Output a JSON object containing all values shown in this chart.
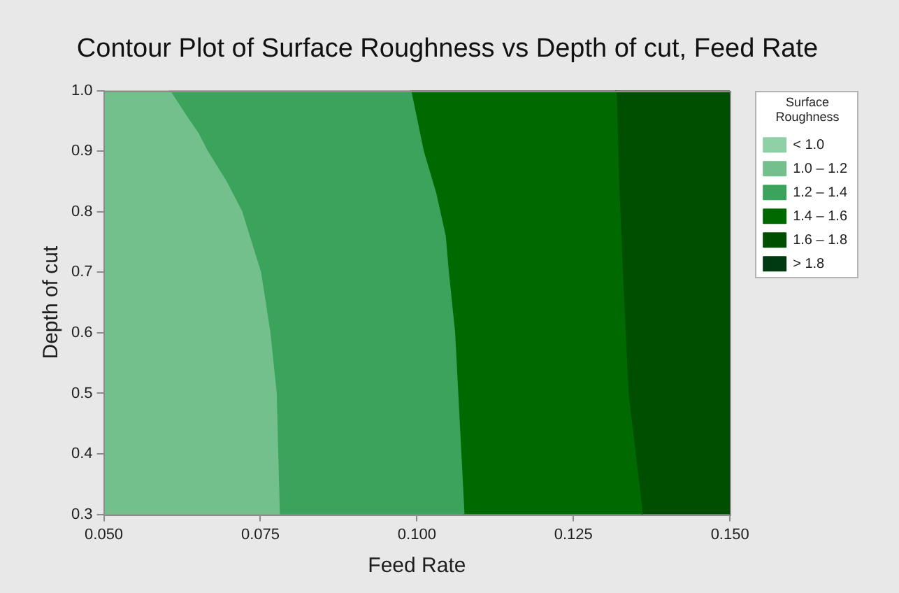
{
  "chart_data": {
    "type": "area",
    "title": "Contour Plot of Surface Roughness vs Depth of cut, Feed Rate",
    "xlabel": "Feed Rate",
    "ylabel": "Depth of cut",
    "legend_title": "Surface Roughness",
    "legend": "top right",
    "xlim": [
      0.05,
      0.15
    ],
    "xticks": [
      {
        "value": 0.05,
        "label": "0.050"
      },
      0.075,
      {
        "value": 0.1,
        "label": "0.100"
      },
      0.125,
      {
        "value": 0.15,
        "label": "0.150"
      }
    ],
    "ylim": [
      0.3,
      1
    ],
    "yticks": [
      0.3,
      0.4,
      0.5,
      0.6,
      0.7,
      0.8,
      0.9,
      {
        "value": 1,
        "label": "1.0"
      }
    ],
    "series": [
      {
        "name": "< 1.0",
        "color": "#8fd0a6"
      },
      {
        "name": "1.0 – 1.2",
        "color": "#74c08c",
        "x": [
          0.05,
          0.078,
          0.0775,
          0.0765,
          0.075,
          0.072,
          0.0695,
          0.0665,
          0.065,
          0.063,
          0.0605,
          0.05
        ],
        "values": [
          0.3,
          0.3,
          0.5,
          0.6,
          0.7,
          0.8,
          0.85,
          0.9,
          0.93,
          0.96,
          1,
          1
        ]
      },
      {
        "name": "1.2 – 1.4",
        "color": "#3ba35b",
        "x": [
          0.078,
          0.0775,
          0.0765,
          0.075,
          0.072,
          0.0695,
          0.0665,
          0.065,
          0.063,
          0.0605,
          0.099,
          0.101,
          0.103,
          0.1045,
          0.105,
          0.106,
          0.1065,
          0.1075
        ],
        "values": [
          0.3,
          0.5,
          0.6,
          0.7,
          0.8,
          0.85,
          0.9,
          0.93,
          0.96,
          1,
          1,
          0.9,
          0.83,
          0.76,
          0.7,
          0.6,
          0.5,
          0.3
        ]
      },
      {
        "name": "1.4 – 1.6",
        "color": "#006a00",
        "x": [
          0.1075,
          0.1065,
          0.106,
          0.105,
          0.1045,
          0.103,
          0.101,
          0.099,
          0.1318,
          0.1322,
          0.1328,
          0.1337,
          0.136
        ],
        "values": [
          0.3,
          0.5,
          0.6,
          0.7,
          0.76,
          0.83,
          0.9,
          1,
          1,
          0.85,
          0.7,
          0.5,
          0.3
        ]
      },
      {
        "name": "1.6 – 1.8",
        "color": "#004f00",
        "x": [
          0.136,
          0.1337,
          0.1328,
          0.1322,
          0.1318,
          0.15,
          0.15
        ],
        "values": [
          0.3,
          0.5,
          0.7,
          0.85,
          1,
          1,
          0.3
        ]
      },
      {
        "name": "> 1.8",
        "color": "#003a12"
      }
    ]
  }
}
